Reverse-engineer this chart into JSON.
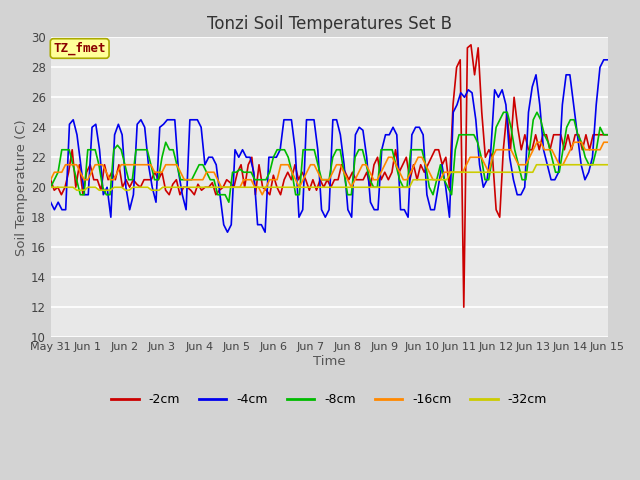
{
  "title": "Tonzi Soil Temperatures Set B",
  "xlabel": "Time",
  "ylabel": "Soil Temperature (C)",
  "ylim": [
    10,
    30
  ],
  "yticks": [
    10,
    12,
    14,
    16,
    18,
    20,
    22,
    24,
    26,
    28,
    30
  ],
  "bg_color": "#d3d3d3",
  "plot_bg_color": "#e8e8e8",
  "annotation_text": "TZ_fmet",
  "annotation_bg": "#ffff99",
  "annotation_border": "#aaaa00",
  "annotation_text_color": "#8b0000",
  "series_order": [
    "-2cm",
    "-4cm",
    "-8cm",
    "-16cm",
    "-32cm"
  ],
  "series": {
    "-2cm": {
      "color": "#cc0000",
      "lw": 1.2
    },
    "-4cm": {
      "color": "#0000ee",
      "lw": 1.2
    },
    "-8cm": {
      "color": "#00bb00",
      "lw": 1.2
    },
    "-16cm": {
      "color": "#ff8800",
      "lw": 1.2
    },
    "-32cm": {
      "color": "#cccc00",
      "lw": 1.2
    }
  },
  "xtick_labels": [
    "May 31",
    "Jun 1",
    "Jun 2",
    "Jun 3",
    "Jun 4",
    "Jun 5",
    "Jun 6",
    "Jun 7",
    "Jun 8",
    "Jun 9",
    "Jun 10",
    "Jun 11",
    "Jun 12",
    "Jun 13",
    "Jun 14",
    "Jun 15"
  ],
  "data": {
    "-2cm": [
      20.5,
      19.8,
      20.0,
      19.5,
      20.0,
      21.0,
      22.5,
      20.0,
      21.5,
      19.5,
      21.0,
      21.5,
      20.5,
      20.5,
      19.8,
      21.5,
      20.5,
      21.0,
      20.5,
      21.5,
      20.0,
      20.5,
      20.0,
      20.5,
      20.2,
      20.0,
      20.5,
      20.5,
      20.5,
      21.0,
      20.5,
      21.0,
      19.8,
      19.5,
      20.2,
      20.5,
      19.5,
      20.0,
      20.0,
      19.8,
      19.5,
      20.2,
      19.8,
      20.0,
      20.0,
      20.3,
      19.5,
      19.8,
      20.0,
      20.5,
      20.3,
      20.0,
      21.0,
      21.5,
      20.0,
      21.5,
      22.0,
      19.5,
      21.5,
      20.0,
      19.8,
      19.5,
      20.8,
      20.0,
      19.5,
      20.5,
      21.0,
      20.5,
      21.5,
      20.5,
      21.0,
      20.5,
      19.8,
      20.5,
      19.8,
      20.5,
      20.0,
      20.5,
      20.0,
      20.5,
      20.5,
      21.5,
      21.0,
      20.5,
      21.0,
      20.5,
      20.5,
      20.5,
      21.0,
      20.0,
      21.5,
      22.0,
      20.5,
      21.0,
      20.5,
      21.0,
      22.5,
      21.0,
      21.5,
      22.0,
      20.5,
      21.5,
      20.5,
      21.5,
      21.0,
      21.5,
      22.0,
      22.5,
      22.5,
      21.5,
      22.0,
      20.0,
      25.5,
      28.0,
      28.5,
      12.0,
      29.3,
      29.5,
      27.5,
      29.3,
      25.0,
      22.0,
      22.5,
      22.0,
      18.5,
      18.0,
      22.5,
      25.0,
      22.5,
      26.0,
      24.0,
      22.5,
      23.5,
      22.5,
      22.5,
      23.5,
      22.5,
      23.5,
      23.5,
      22.5,
      23.5,
      23.5,
      23.5,
      22.5,
      23.5,
      22.5,
      23.5,
      23.5,
      22.5,
      23.5,
      22.5,
      23.5,
      23.5,
      23.5,
      23.5,
      23.5
    ],
    "-4cm": [
      19.0,
      18.5,
      19.0,
      18.5,
      18.5,
      24.2,
      24.5,
      23.5,
      21.5,
      19.5,
      19.5,
      24.0,
      24.2,
      22.5,
      19.5,
      20.0,
      18.0,
      23.5,
      24.2,
      23.5,
      20.0,
      18.5,
      19.5,
      24.2,
      24.5,
      24.0,
      21.5,
      20.0,
      19.0,
      24.0,
      24.2,
      24.5,
      24.5,
      24.5,
      21.0,
      19.5,
      18.5,
      24.5,
      24.5,
      24.5,
      24.0,
      21.5,
      22.0,
      22.0,
      21.5,
      19.5,
      17.5,
      17.0,
      17.5,
      22.5,
      22.0,
      22.5,
      22.0,
      22.0,
      21.0,
      17.5,
      17.5,
      17.0,
      22.0,
      22.0,
      22.0,
      22.5,
      24.5,
      24.5,
      24.5,
      22.5,
      18.0,
      18.5,
      24.5,
      24.5,
      24.5,
      22.5,
      18.5,
      18.0,
      18.5,
      24.5,
      24.5,
      23.5,
      21.5,
      18.5,
      18.0,
      23.5,
      24.0,
      23.8,
      22.0,
      19.0,
      18.5,
      18.5,
      22.5,
      23.5,
      23.5,
      24.0,
      23.5,
      18.5,
      18.5,
      18.0,
      23.5,
      24.0,
      24.0,
      23.5,
      19.5,
      18.5,
      18.5,
      20.0,
      21.5,
      20.0,
      18.0,
      25.0,
      25.5,
      26.3,
      26.0,
      26.5,
      26.3,
      24.5,
      21.5,
      20.0,
      20.5,
      22.5,
      26.5,
      26.0,
      26.5,
      25.5,
      22.0,
      20.5,
      19.5,
      19.5,
      20.0,
      25.0,
      26.7,
      27.5,
      25.5,
      22.5,
      21.5,
      20.5,
      20.5,
      21.0,
      25.5,
      27.5,
      27.5,
      25.5,
      23.5,
      21.5,
      20.5,
      21.0,
      22.0,
      25.5,
      28.0,
      28.5,
      28.5
    ],
    "-8cm": [
      20.0,
      20.5,
      21.0,
      22.5,
      22.5,
      22.5,
      21.5,
      20.5,
      19.5,
      19.5,
      22.5,
      22.5,
      22.5,
      21.5,
      20.0,
      19.5,
      19.5,
      22.5,
      22.8,
      22.5,
      21.5,
      20.5,
      20.5,
      22.5,
      22.5,
      22.5,
      22.5,
      21.5,
      20.5,
      20.5,
      22.0,
      23.0,
      22.5,
      22.5,
      21.5,
      20.5,
      20.5,
      20.5,
      20.5,
      21.0,
      21.5,
      21.5,
      21.0,
      20.5,
      20.5,
      19.5,
      19.5,
      19.5,
      19.0,
      21.0,
      21.0,
      21.2,
      21.0,
      21.0,
      21.0,
      20.5,
      20.5,
      20.5,
      20.5,
      21.0,
      22.0,
      22.5,
      22.5,
      22.5,
      22.0,
      21.0,
      19.5,
      19.5,
      22.5,
      22.5,
      22.5,
      22.5,
      21.5,
      20.5,
      20.5,
      20.5,
      22.0,
      22.5,
      22.5,
      21.0,
      19.5,
      19.5,
      22.0,
      22.5,
      22.5,
      21.5,
      20.5,
      20.0,
      20.0,
      22.5,
      22.5,
      22.5,
      22.5,
      21.5,
      20.5,
      20.0,
      20.0,
      22.5,
      22.5,
      22.5,
      22.5,
      21.5,
      20.0,
      19.5,
      20.5,
      21.5,
      20.5,
      20.0,
      19.5,
      22.5,
      23.5,
      23.5,
      23.5,
      23.5,
      23.5,
      23.0,
      22.0,
      20.5,
      20.5,
      22.0,
      24.0,
      24.5,
      25.0,
      25.0,
      24.0,
      22.5,
      21.5,
      20.5,
      20.5,
      22.5,
      24.5,
      25.0,
      24.5,
      23.5,
      23.0,
      22.0,
      21.0,
      21.0,
      22.5,
      24.0,
      24.5,
      24.5,
      23.5,
      23.0,
      22.0,
      21.5,
      21.5,
      22.5,
      24.0,
      23.5,
      23.5
    ],
    "-16cm": [
      20.5,
      21.0,
      21.0,
      21.0,
      21.5,
      21.5,
      21.5,
      21.5,
      21.0,
      20.5,
      20.5,
      21.0,
      21.5,
      21.5,
      21.5,
      21.0,
      20.5,
      20.5,
      21.0,
      21.5,
      21.5,
      21.5,
      21.5,
      21.5,
      21.5,
      21.5,
      21.5,
      21.5,
      21.0,
      21.0,
      21.0,
      21.5,
      21.5,
      21.5,
      21.5,
      21.0,
      20.5,
      20.5,
      20.5,
      20.5,
      20.5,
      20.5,
      21.0,
      21.0,
      21.0,
      20.5,
      20.0,
      20.0,
      20.0,
      20.0,
      20.0,
      20.0,
      20.5,
      20.5,
      20.5,
      20.0,
      20.0,
      19.5,
      20.0,
      20.5,
      20.5,
      20.5,
      21.5,
      21.5,
      21.5,
      21.0,
      20.5,
      20.0,
      20.5,
      21.0,
      21.5,
      21.5,
      21.0,
      20.5,
      20.5,
      20.5,
      21.0,
      21.5,
      21.5,
      21.0,
      20.5,
      20.0,
      20.5,
      21.0,
      21.5,
      21.5,
      21.0,
      20.5,
      20.5,
      21.0,
      21.5,
      22.0,
      22.0,
      21.5,
      21.0,
      20.5,
      20.5,
      21.0,
      21.5,
      22.0,
      22.0,
      21.5,
      21.0,
      20.5,
      20.5,
      20.5,
      21.0,
      21.0,
      21.0,
      21.0,
      21.0,
      21.0,
      21.5,
      22.0,
      22.0,
      22.0,
      22.0,
      21.5,
      21.0,
      22.0,
      22.5,
      22.5,
      22.5,
      22.5,
      22.5,
      22.0,
      21.5,
      21.5,
      21.5,
      22.0,
      22.5,
      23.0,
      23.0,
      22.5,
      22.5,
      22.5,
      22.0,
      21.5,
      21.5,
      22.0,
      22.5,
      23.0,
      23.0,
      23.0,
      22.5,
      22.5,
      22.5,
      22.5,
      22.5,
      23.0,
      23.0
    ],
    "-32cm": [
      20.0,
      20.0,
      20.0,
      20.0,
      20.0,
      20.0,
      20.0,
      19.8,
      19.8,
      19.8,
      20.0,
      20.0,
      20.0,
      19.8,
      19.8,
      19.8,
      19.8,
      20.0,
      20.0,
      20.0,
      19.8,
      19.8,
      20.0,
      20.0,
      20.0,
      20.0,
      20.0,
      19.8,
      19.8,
      19.8,
      20.0,
      20.0,
      20.0,
      20.0,
      20.0,
      20.0,
      20.0,
      20.0,
      20.0,
      20.0,
      20.0,
      20.0,
      20.0,
      20.0,
      20.0,
      20.0,
      20.0,
      20.0,
      20.0,
      20.0,
      20.0,
      20.0,
      20.0,
      20.0,
      20.0,
      20.0,
      20.0,
      20.0,
      20.0,
      20.0,
      20.0,
      20.0,
      20.0,
      20.0,
      20.0,
      20.0,
      20.0,
      20.0,
      20.0,
      20.0,
      20.0,
      20.0,
      20.0,
      20.0,
      20.0,
      20.0,
      20.0,
      20.0,
      20.0,
      20.0,
      20.0,
      20.0,
      20.0,
      20.0,
      20.0,
      20.0,
      20.0,
      20.0,
      20.0,
      20.0,
      20.0,
      20.0,
      20.0,
      20.0,
      20.0,
      20.0,
      20.0,
      20.5,
      20.5,
      20.5,
      20.5,
      20.5,
      20.5,
      20.5,
      20.5,
      20.5,
      20.5,
      21.0,
      21.0,
      21.0,
      21.0,
      21.0,
      21.0,
      21.0,
      21.0,
      21.0,
      21.0,
      21.0,
      21.0,
      21.0,
      21.0,
      21.0,
      21.0,
      21.0,
      21.0,
      21.0,
      21.0,
      21.0,
      21.0,
      21.0,
      21.5,
      21.5,
      21.5,
      21.5,
      21.5,
      21.5,
      21.5,
      21.5,
      21.5,
      21.5,
      21.5,
      21.5,
      21.5,
      21.5,
      21.5,
      21.5,
      21.5,
      21.5,
      21.5,
      21.5
    ]
  }
}
